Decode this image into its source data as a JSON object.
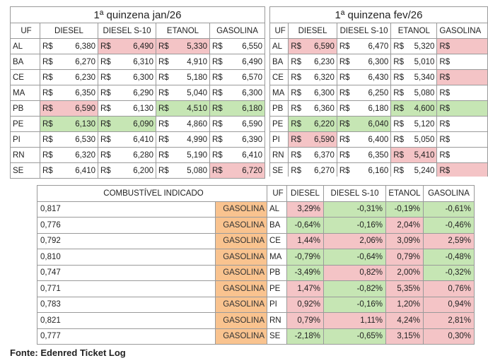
{
  "table_jan": {
    "title": "1ª quinzena jan/26",
    "headers": [
      "UF",
      "DIESEL",
      "DIESEL S-10",
      "ETANOL",
      "GASOLINA"
    ],
    "currency": "R$",
    "rows": [
      {
        "uf": "AL",
        "diesel": "6,380",
        "s10": "6,490",
        "etanol": "5,330",
        "gasolina": "6,550"
      },
      {
        "uf": "BA",
        "diesel": "6,270",
        "s10": "6,310",
        "etanol": "4,910",
        "gasolina": "6,490"
      },
      {
        "uf": "CE",
        "diesel": "6,230",
        "s10": "6,300",
        "etanol": "5,180",
        "gasolina": "6,570"
      },
      {
        "uf": "MA",
        "diesel": "6,350",
        "s10": "6,290",
        "etanol": "5,040",
        "gasolina": "6,300"
      },
      {
        "uf": "PB",
        "diesel": "6,590",
        "s10": "6,130",
        "etanol": "4,510",
        "gasolina": "6,180"
      },
      {
        "uf": "PE",
        "diesel": "6,130",
        "s10": "6,090",
        "etanol": "4,860",
        "gasolina": "6,590"
      },
      {
        "uf": "PI",
        "diesel": "6,530",
        "s10": "6,410",
        "etanol": "4,990",
        "gasolina": "6,390"
      },
      {
        "uf": "RN",
        "diesel": "6,320",
        "s10": "6,280",
        "etanol": "5,190",
        "gasolina": "6,410"
      },
      {
        "uf": "SE",
        "diesel": "6,410",
        "s10": "6,200",
        "etanol": "5,080",
        "gasolina": "6,720"
      }
    ]
  },
  "table_fev": {
    "title": "1ª quinzena fev/26",
    "headers": [
      "UF",
      "DIESEL",
      "DIESEL S-10",
      "ETANOL",
      "GASOLINA"
    ],
    "currency": "R$",
    "rows": [
      {
        "uf": "AL",
        "diesel": "6,590",
        "s10": "6,470",
        "etanol": "5,320"
      },
      {
        "uf": "BA",
        "diesel": "6,230",
        "s10": "6,300",
        "etanol": "5,010"
      },
      {
        "uf": "CE",
        "diesel": "6,320",
        "s10": "6,430",
        "etanol": "5,340"
      },
      {
        "uf": "MA",
        "diesel": "6,300",
        "s10": "6,250",
        "etanol": "5,080"
      },
      {
        "uf": "PB",
        "diesel": "6,360",
        "s10": "6,180",
        "etanol": "4,600"
      },
      {
        "uf": "PE",
        "diesel": "6,220",
        "s10": "6,040",
        "etanol": "5,120"
      },
      {
        "uf": "PI",
        "diesel": "6,590",
        "s10": "6,400",
        "etanol": "5,050"
      },
      {
        "uf": "RN",
        "diesel": "6,370",
        "s10": "6,350",
        "etanol": "5,410"
      },
      {
        "uf": "SE",
        "diesel": "6,270",
        "s10": "6,160",
        "etanol": "5,240"
      }
    ]
  },
  "table_var": {
    "headers": [
      "COMBUSTÍVEL INDICADO",
      "UF",
      "DIESEL",
      "DIESEL S-10",
      "ETANOL",
      "GASOLINA"
    ],
    "rows": [
      {
        "ratio": "0,817",
        "fuel": "GASOLINA",
        "uf": "AL",
        "diesel": "3,29%",
        "s10": "-0,31%",
        "etanol": "-0,19%",
        "gasolina": "-0,61%"
      },
      {
        "ratio": "0,776",
        "fuel": "GASOLINA",
        "uf": "BA",
        "diesel": "-0,64%",
        "s10": "-0,16%",
        "etanol": "2,04%",
        "gasolina": "-0,46%"
      },
      {
        "ratio": "0,792",
        "fuel": "GASOLINA",
        "uf": "CE",
        "diesel": "1,44%",
        "s10": "2,06%",
        "etanol": "3,09%",
        "gasolina": "2,59%"
      },
      {
        "ratio": "0,810",
        "fuel": "GASOLINA",
        "uf": "MA",
        "diesel": "-0,79%",
        "s10": "-0,64%",
        "etanol": "0,79%",
        "gasolina": "-0,48%"
      },
      {
        "ratio": "0,747",
        "fuel": "GASOLINA",
        "uf": "PB",
        "diesel": "-3,49%",
        "s10": "0,82%",
        "etanol": "2,00%",
        "gasolina": "-0,32%"
      },
      {
        "ratio": "0,771",
        "fuel": "GASOLINA",
        "uf": "PE",
        "diesel": "1,47%",
        "s10": "-0,82%",
        "etanol": "5,35%",
        "gasolina": "0,76%"
      },
      {
        "ratio": "0,783",
        "fuel": "GASOLINA",
        "uf": "PI",
        "diesel": "0,92%",
        "s10": "-0,16%",
        "etanol": "1,20%",
        "gasolina": "0,94%"
      },
      {
        "ratio": "0,821",
        "fuel": "GASOLINA",
        "uf": "RN",
        "diesel": "0,79%",
        "s10": "1,11%",
        "etanol": "4,24%",
        "gasolina": "2,81%"
      },
      {
        "ratio": "0,777",
        "fuel": "GASOLINA",
        "uf": "SE",
        "diesel": "-2,18%",
        "s10": "-0,65%",
        "etanol": "3,15%",
        "gasolina": "0,30%"
      }
    ]
  },
  "source": "Fonte: Edenred Ticket Log",
  "colors": {
    "red": "#f4c4c6",
    "green": "#c6e6b4",
    "orange": "#f9c38f"
  }
}
